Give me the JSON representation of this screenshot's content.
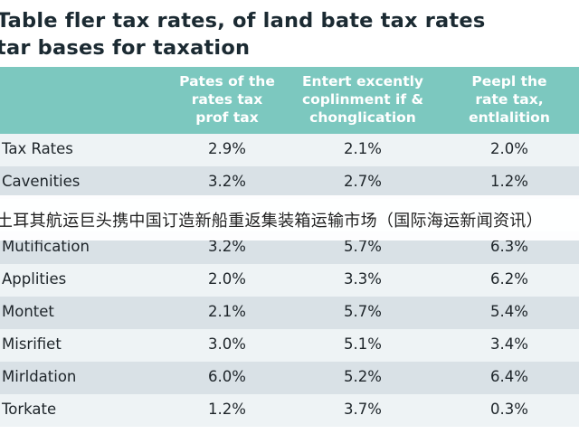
{
  "title": {
    "line1": "Table fler tax rates, of land bate tax rates",
    "line2": "tar bases for taxation"
  },
  "headers": [
    "Pates of the\nrates tax\nprof tax",
    "Entert excently\ncoplinment if &\nchonglication",
    "Peepl the\nrate tax,\nentlalition"
  ],
  "rows": [
    {
      "label": "Tax Rates",
      "v": [
        "2.9%",
        "2.1%",
        "2.0%"
      ]
    },
    {
      "label": "Cavenities",
      "v": [
        "3.2%",
        "2.7%",
        "1.2%"
      ]
    },
    {
      "label": "",
      "v": [
        "",
        "",
        ""
      ]
    },
    {
      "label": "Mutification",
      "v": [
        "3.2%",
        "5.7%",
        "6.3%"
      ]
    },
    {
      "label": "Applities",
      "v": [
        "2.0%",
        "3.3%",
        "6.2%"
      ]
    },
    {
      "label": "Montet",
      "v": [
        "2.1%",
        "5.7%",
        "5.4%"
      ]
    },
    {
      "label": "Misrifiet",
      "v": [
        "3.0%",
        "5.1%",
        "3.4%"
      ]
    },
    {
      "label": "Mirldation",
      "v": [
        "6.0%",
        "5.2%",
        "6.4%"
      ]
    },
    {
      "label": "Torkate",
      "v": [
        "1.2%",
        "3.7%",
        "0.3%"
      ]
    }
  ],
  "overlay_caption": "土耳其航运巨头携中国订造新船重返集装箱运输市场（国际海运新闻资讯）",
  "colors": {
    "header_bg": "#7cc8bf",
    "row_even": "#eef3f5",
    "row_odd": "#d9e1e6"
  }
}
